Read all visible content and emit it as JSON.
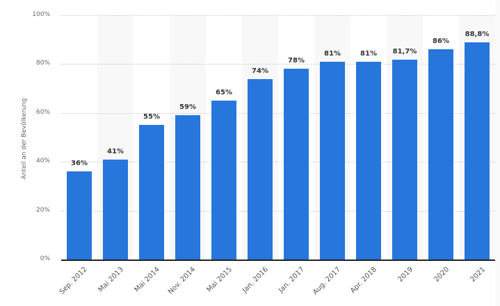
{
  "chart_data": {
    "type": "bar",
    "title": "",
    "xlabel": "",
    "ylabel": "Anteil an der Bevölkerung",
    "ylim": [
      0,
      100
    ],
    "yticks": [
      "0%",
      "20%",
      "40%",
      "60%",
      "80%",
      "100%"
    ],
    "grid": true,
    "legend": null,
    "categories": [
      "Sep. 2012",
      "Mai 2013",
      "Mai 2014",
      "Nov. 2014",
      "Mai 2015",
      "Jan. 2016",
      "Jan. 2017",
      "Aug. 2017",
      "Apr. 2018",
      "2019",
      "2020",
      "2021"
    ],
    "values": [
      36,
      41,
      55,
      59,
      65,
      74,
      78,
      81,
      81,
      81.7,
      86,
      88.8
    ],
    "value_labels": [
      "36%",
      "41%",
      "55%",
      "59%",
      "65%",
      "74%",
      "78%",
      "81%",
      "81%",
      "81,7%",
      "86%",
      "88,8%"
    ],
    "bar_color": "#2776dc"
  }
}
